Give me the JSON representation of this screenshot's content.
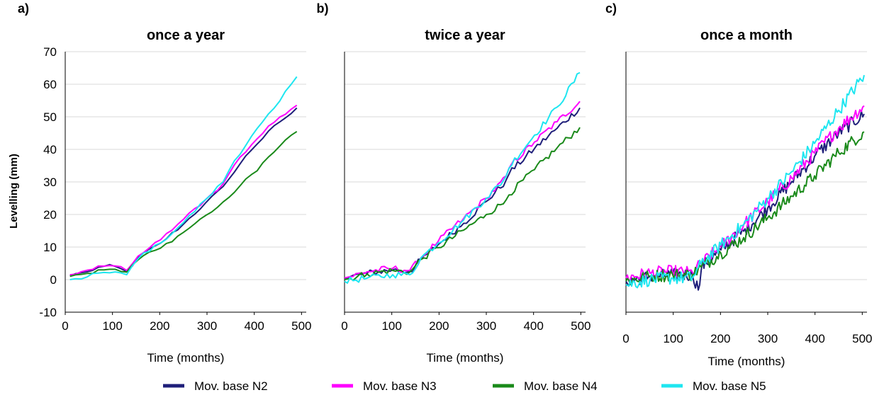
{
  "chart_data": [
    {
      "type": "line",
      "panel_label": "a)",
      "title": "once a year",
      "xlabel": "Time (months)",
      "ylabel": "Levelling (mm)",
      "xlim": [
        0,
        510
      ],
      "ylim": [
        -10,
        70
      ],
      "xticks": [
        "0",
        "100",
        "200",
        "300",
        "400",
        "500"
      ],
      "yticks": [
        "-10",
        "0",
        "10",
        "20",
        "30",
        "40",
        "50",
        "60",
        "70"
      ],
      "grid": true,
      "sampling_months": 12,
      "noise": 0.5,
      "series": [
        {
          "name": "Mov. base N2",
          "color": "#1f1f7a",
          "points": [
            [
              10,
              1.2
            ],
            [
              30,
              2.0
            ],
            [
              50,
              2.5
            ],
            [
              70,
              3.8
            ],
            [
              100,
              4.2
            ],
            [
              130,
              2.5
            ],
            [
              160,
              7.5
            ],
            [
              200,
              11.0
            ],
            [
              250,
              17.0
            ],
            [
              300,
              24.0
            ],
            [
              340,
              29.0
            ],
            [
              350,
              32.0
            ],
            [
              400,
              41.0
            ],
            [
              450,
              48.0
            ],
            [
              500,
              53.5
            ]
          ]
        },
        {
          "name": "Mov. base N3",
          "color": "#ff00ff",
          "points": [
            [
              10,
              1.5
            ],
            [
              30,
              2.3
            ],
            [
              50,
              3.0
            ],
            [
              70,
              4.2
            ],
            [
              100,
              4.5
            ],
            [
              130,
              2.8
            ],
            [
              160,
              8.0
            ],
            [
              200,
              12.0
            ],
            [
              250,
              18.5
            ],
            [
              300,
              25.0
            ],
            [
              340,
              30.0
            ],
            [
              350,
              34.0
            ],
            [
              400,
              42.5
            ],
            [
              450,
              49.5
            ],
            [
              500,
              55.0
            ]
          ]
        },
        {
          "name": "Mov. base N4",
          "color": "#1a8a1a",
          "points": [
            [
              10,
              1.0
            ],
            [
              30,
              1.5
            ],
            [
              50,
              2.0
            ],
            [
              70,
              3.0
            ],
            [
              100,
              3.5
            ],
            [
              130,
              2.3
            ],
            [
              160,
              7.0
            ],
            [
              200,
              9.5
            ],
            [
              250,
              14.5
            ],
            [
              300,
              20.0
            ],
            [
              340,
              24.0
            ],
            [
              350,
              26.0
            ],
            [
              400,
              33.0
            ],
            [
              450,
              40.5
            ],
            [
              500,
              47.0
            ]
          ]
        },
        {
          "name": "Mov. base N5",
          "color": "#1ee6f0",
          "points": [
            [
              10,
              0.0
            ],
            [
              30,
              0.0
            ],
            [
              50,
              1.0
            ],
            [
              70,
              2.0
            ],
            [
              100,
              2.5
            ],
            [
              130,
              1.5
            ],
            [
              160,
              7.5
            ],
            [
              200,
              11.0
            ],
            [
              250,
              17.5
            ],
            [
              300,
              25.0
            ],
            [
              340,
              31.0
            ],
            [
              350,
              35.0
            ],
            [
              400,
              45.0
            ],
            [
              450,
              54.0
            ],
            [
              500,
              65.0
            ]
          ]
        }
      ]
    },
    {
      "type": "line",
      "panel_label": "b)",
      "title": "twice a year",
      "xlabel": "Time (months)",
      "ylabel": "",
      "xlim": [
        0,
        510
      ],
      "ylim": [
        -10,
        70
      ],
      "xticks": [
        "0",
        "100",
        "200",
        "300",
        "400",
        "500"
      ],
      "yticks": [],
      "grid": true,
      "sampling_months": 6,
      "noise": 1.0,
      "series": [
        {
          "name": "Mov. base N2",
          "color": "#1f1f7a",
          "points": [
            [
              0,
              0.5
            ],
            [
              50,
              2.0
            ],
            [
              100,
              3.0
            ],
            [
              140,
              2.5
            ],
            [
              160,
              6.0
            ],
            [
              200,
              11.0
            ],
            [
              250,
              17.0
            ],
            [
              300,
              24.0
            ],
            [
              340,
              30.0
            ],
            [
              350,
              33.0
            ],
            [
              400,
              40.0
            ],
            [
              450,
              46.5
            ],
            [
              500,
              53.0
            ]
          ]
        },
        {
          "name": "Mov. base N3",
          "color": "#ff00ff",
          "points": [
            [
              0,
              0.5
            ],
            [
              50,
              2.5
            ],
            [
              100,
              3.5
            ],
            [
              140,
              2.8
            ],
            [
              160,
              6.5
            ],
            [
              200,
              12.0
            ],
            [
              250,
              18.5
            ],
            [
              300,
              25.0
            ],
            [
              340,
              31.0
            ],
            [
              350,
              35.0
            ],
            [
              400,
              42.0
            ],
            [
              450,
              48.5
            ],
            [
              500,
              55.0
            ]
          ]
        },
        {
          "name": "Mov. base N4",
          "color": "#1a8a1a",
          "points": [
            [
              0,
              0.0
            ],
            [
              50,
              1.8
            ],
            [
              100,
              2.8
            ],
            [
              140,
              2.3
            ],
            [
              160,
              6.0
            ],
            [
              200,
              10.0
            ],
            [
              250,
              15.0
            ],
            [
              300,
              20.0
            ],
            [
              340,
              24.0
            ],
            [
              350,
              26.5
            ],
            [
              400,
              33.5
            ],
            [
              450,
              40.5
            ],
            [
              500,
              47.0
            ]
          ]
        },
        {
          "name": "Mov. base N5",
          "color": "#1ee6f0",
          "points": [
            [
              0,
              -0.5
            ],
            [
              50,
              0.5
            ],
            [
              100,
              1.5
            ],
            [
              140,
              1.5
            ],
            [
              160,
              6.5
            ],
            [
              200,
              11.5
            ],
            [
              250,
              18.0
            ],
            [
              300,
              25.0
            ],
            [
              340,
              31.0
            ],
            [
              350,
              35.0
            ],
            [
              400,
              44.0
            ],
            [
              450,
              53.0
            ],
            [
              500,
              64.0
            ]
          ]
        }
      ]
    },
    {
      "type": "line",
      "panel_label": "c)",
      "title": "once a month",
      "xlabel": "Time (months)",
      "ylabel": "",
      "xlim": [
        0,
        510
      ],
      "ylim": [
        -10,
        70
      ],
      "xticks": [
        "0",
        "100",
        "200",
        "300",
        "400",
        "500"
      ],
      "yticks": [],
      "grid": true,
      "sampling_months": 3,
      "noise": 2.0,
      "series": [
        {
          "name": "Mov. base N2",
          "color": "#1f1f7a",
          "points": [
            [
              0,
              -0.5
            ],
            [
              50,
              1.0
            ],
            [
              100,
              1.5
            ],
            [
              140,
              1.5
            ],
            [
              155,
              -3.0
            ],
            [
              160,
              4.0
            ],
            [
              200,
              9.0
            ],
            [
              250,
              15.0
            ],
            [
              300,
              22.0
            ],
            [
              350,
              30.0
            ],
            [
              400,
              38.0
            ],
            [
              450,
              45.0
            ],
            [
              505,
              51.0
            ]
          ]
        },
        {
          "name": "Mov. base N3",
          "color": "#ff00ff",
          "points": [
            [
              0,
              0.5
            ],
            [
              50,
              2.0
            ],
            [
              100,
              2.5
            ],
            [
              140,
              2.0
            ],
            [
              160,
              5.0
            ],
            [
              200,
              10.0
            ],
            [
              250,
              17.0
            ],
            [
              300,
              24.0
            ],
            [
              350,
              31.0
            ],
            [
              400,
              39.0
            ],
            [
              450,
              46.5
            ],
            [
              505,
              53.5
            ]
          ]
        },
        {
          "name": "Mov. base N4",
          "color": "#1a8a1a",
          "points": [
            [
              0,
              -0.5
            ],
            [
              50,
              1.0
            ],
            [
              100,
              1.5
            ],
            [
              140,
              1.5
            ],
            [
              160,
              4.0
            ],
            [
              200,
              8.0
            ],
            [
              250,
              13.0
            ],
            [
              300,
              19.0
            ],
            [
              350,
              25.5
            ],
            [
              400,
              32.0
            ],
            [
              450,
              39.0
            ],
            [
              505,
              45.5
            ]
          ]
        },
        {
          "name": "Mov. base N5",
          "color": "#1ee6f0",
          "points": [
            [
              0,
              -1.5
            ],
            [
              50,
              0.0
            ],
            [
              100,
              0.5
            ],
            [
              140,
              0.5
            ],
            [
              160,
              5.0
            ],
            [
              200,
              10.5
            ],
            [
              250,
              17.0
            ],
            [
              300,
              25.0
            ],
            [
              350,
              33.0
            ],
            [
              400,
              42.0
            ],
            [
              450,
              52.0
            ],
            [
              505,
              63.0
            ]
          ]
        }
      ]
    }
  ],
  "legend": {
    "placement": "bottom",
    "items": [
      "Mov. base N2",
      "Mov. base N3",
      "Mov. base N4",
      "Mov. base N5"
    ]
  }
}
